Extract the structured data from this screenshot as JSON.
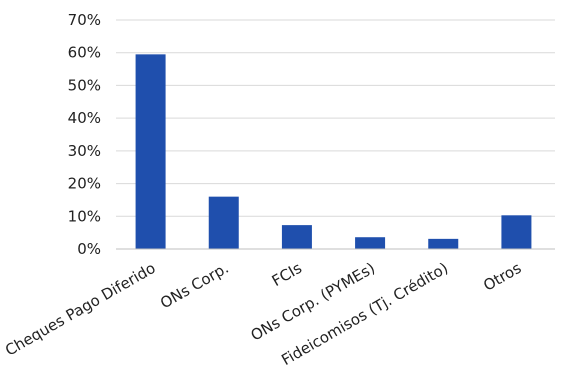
{
  "chart_data": {
    "type": "bar",
    "title": "",
    "xlabel": "",
    "ylabel": "",
    "categories": [
      "Cheques Pago Diferido",
      "ONs Corp.",
      "FCIs",
      "ONs Corp. (PYMEs)",
      "Fideicomisos (Tj. Crédito)",
      "Otros"
    ],
    "values": [
      59.5,
      16.0,
      7.3,
      3.6,
      3.1,
      10.3
    ],
    "ylim": [
      0,
      70
    ],
    "yticks": [
      0,
      10,
      20,
      30,
      40,
      50,
      60,
      70
    ],
    "ytick_labels": [
      "0%",
      "10%",
      "20%",
      "30%",
      "40%",
      "50%",
      "60%",
      "70%"
    ],
    "grid": true,
    "legend": "none",
    "bar_color": "#1f4fad"
  }
}
